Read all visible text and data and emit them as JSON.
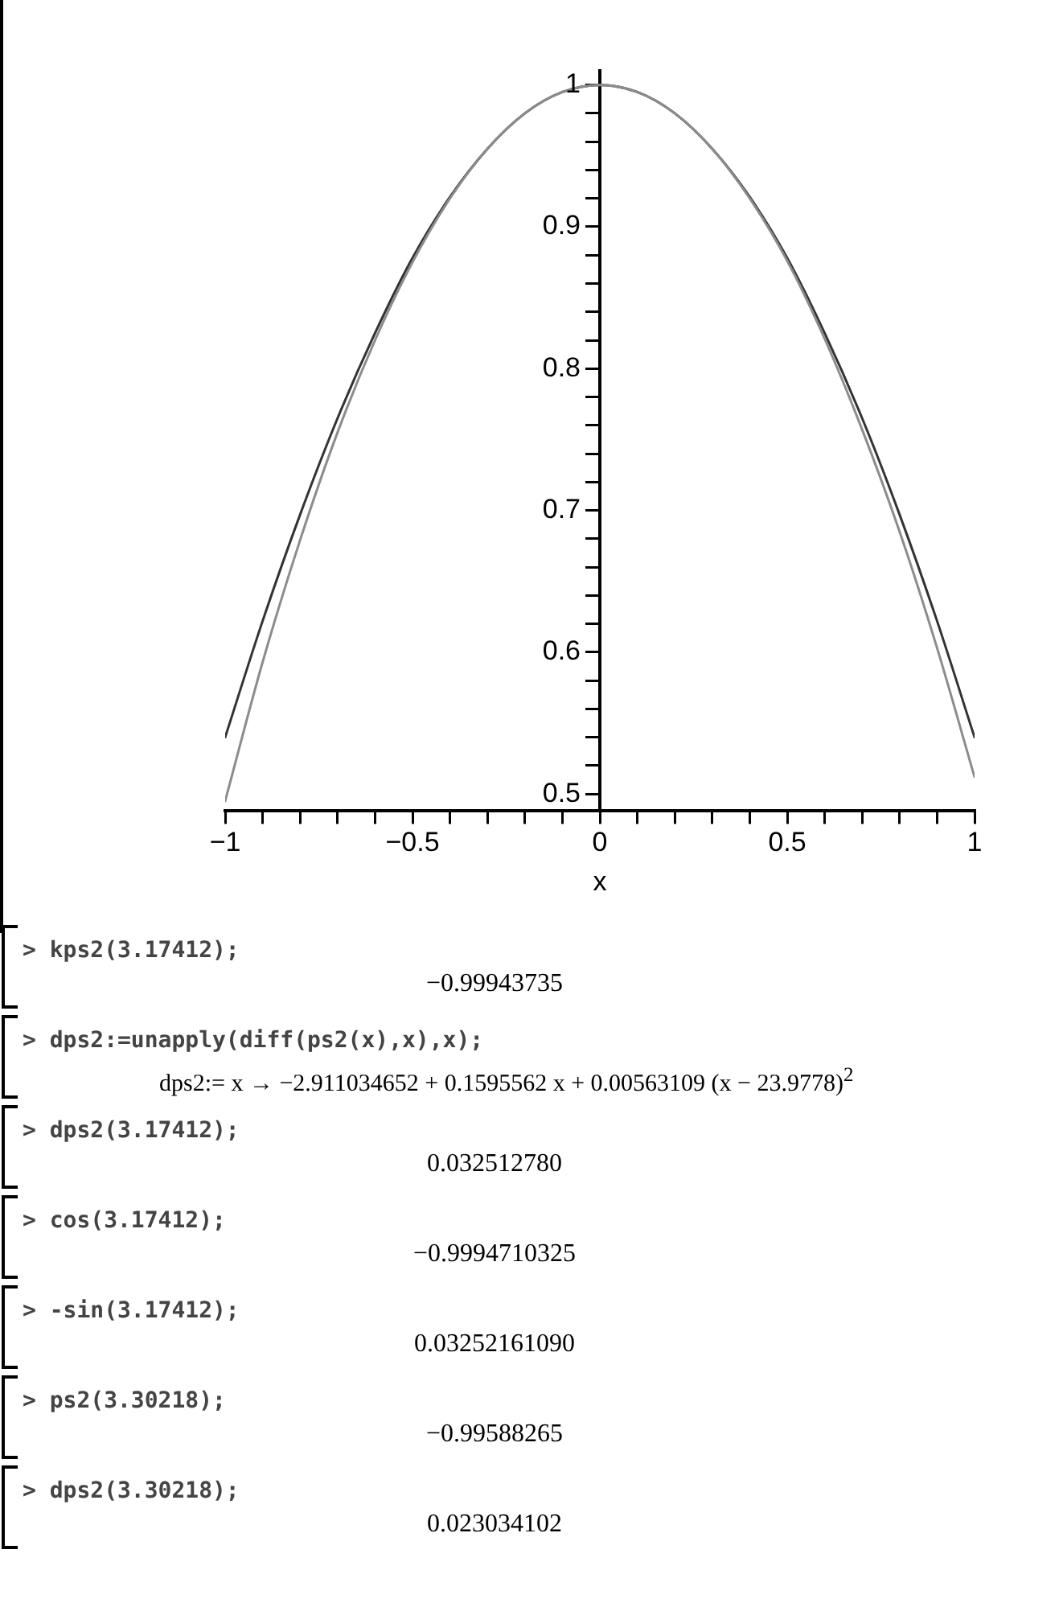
{
  "chart_data": {
    "type": "line",
    "xlabel": "x",
    "xlim": [
      -1,
      1
    ],
    "ylim": [
      0.488,
      1.01
    ],
    "xticks": [
      {
        "value": -1,
        "label": "−1"
      },
      {
        "value": -0.9,
        "label": null
      },
      {
        "value": -0.8,
        "label": null
      },
      {
        "value": -0.7,
        "label": null
      },
      {
        "value": -0.6,
        "label": null
      },
      {
        "value": -0.5,
        "label": "−0.5"
      },
      {
        "value": -0.4,
        "label": null
      },
      {
        "value": -0.3,
        "label": null
      },
      {
        "value": -0.2,
        "label": null
      },
      {
        "value": -0.1,
        "label": null
      },
      0,
      {
        "value": 0.1,
        "label": null
      },
      {
        "value": 0.2,
        "label": null
      },
      {
        "value": 0.3,
        "label": null
      },
      {
        "value": 0.4,
        "label": null
      },
      0.5,
      {
        "value": 0.6,
        "label": null
      },
      {
        "value": 0.7,
        "label": null
      },
      {
        "value": 0.8,
        "label": null
      },
      {
        "value": 0.9,
        "label": null
      },
      1
    ],
    "yticks": [
      {
        "value": 0.5,
        "label": "0.5"
      },
      {
        "value": 0.52,
        "label": null
      },
      {
        "value": 0.54,
        "label": null
      },
      {
        "value": 0.56,
        "label": null
      },
      {
        "value": 0.58,
        "label": null
      },
      {
        "value": 0.6,
        "label": "0.6"
      },
      {
        "value": 0.62,
        "label": null
      },
      {
        "value": 0.64,
        "label": null
      },
      {
        "value": 0.66,
        "label": null
      },
      {
        "value": 0.68,
        "label": null
      },
      {
        "value": 0.7,
        "label": "0.7"
      },
      {
        "value": 0.72,
        "label": null
      },
      {
        "value": 0.74,
        "label": null
      },
      {
        "value": 0.76,
        "label": null
      },
      {
        "value": 0.78,
        "label": null
      },
      {
        "value": 0.8,
        "label": "0.8"
      },
      {
        "value": 0.82,
        "label": null
      },
      {
        "value": 0.84,
        "label": null
      },
      {
        "value": 0.86,
        "label": null
      },
      {
        "value": 0.88,
        "label": null
      },
      {
        "value": 0.9,
        "label": "0.9"
      },
      {
        "value": 0.92,
        "label": null
      },
      {
        "value": 0.94,
        "label": null
      },
      {
        "value": 0.96,
        "label": null
      },
      {
        "value": 0.98,
        "label": null
      },
      1
    ],
    "x": [
      -1,
      -0.9,
      -0.8,
      -0.7,
      -0.6,
      -0.5,
      -0.4,
      -0.3,
      -0.2,
      -0.1,
      0,
      0.1,
      0.2,
      0.3,
      0.4,
      0.5,
      0.6,
      0.7,
      0.8,
      0.9,
      1
    ],
    "series": [
      {
        "color": "#8c8c8c",
        "values": [
          0.495,
          0.593,
          0.679,
          0.755,
          0.82,
          0.875,
          0.92,
          0.955,
          0.98,
          0.995,
          1,
          0.995,
          0.98,
          0.955,
          0.92,
          0.876,
          0.821,
          0.757,
          0.685,
          0.603,
          0.512
        ]
      },
      {
        "color": "#333333",
        "values": [
          0.54,
          0.622,
          0.697,
          0.765,
          0.825,
          0.878,
          0.921,
          0.955,
          0.98,
          0.995,
          1,
          0.995,
          0.98,
          0.955,
          0.921,
          0.878,
          0.825,
          0.765,
          0.697,
          0.622,
          0.54
        ]
      }
    ],
    "grid": false,
    "legend": false,
    "marker": "none",
    "line_style": "solid",
    "annotations": [
      "> kps2(3.17412);",
      "−0.99943735",
      "> dps2:=unapply(diff(ps2(x),x),x);",
      "dps2:= x → −2.911034652 + 0.1595562 x + 0.00563109 (x − 23.9778)$^{2}$",
      "> dps2(3.17412);",
      "0.032512780",
      "> cos(3.17412);",
      "−0.9994710325",
      "> -sin(3.17412);",
      "0.03252161090",
      "> ps2(3.30218);",
      "−0.99588265",
      "> dps2(3.30218);",
      "0.023034102"
    ]
  }
}
